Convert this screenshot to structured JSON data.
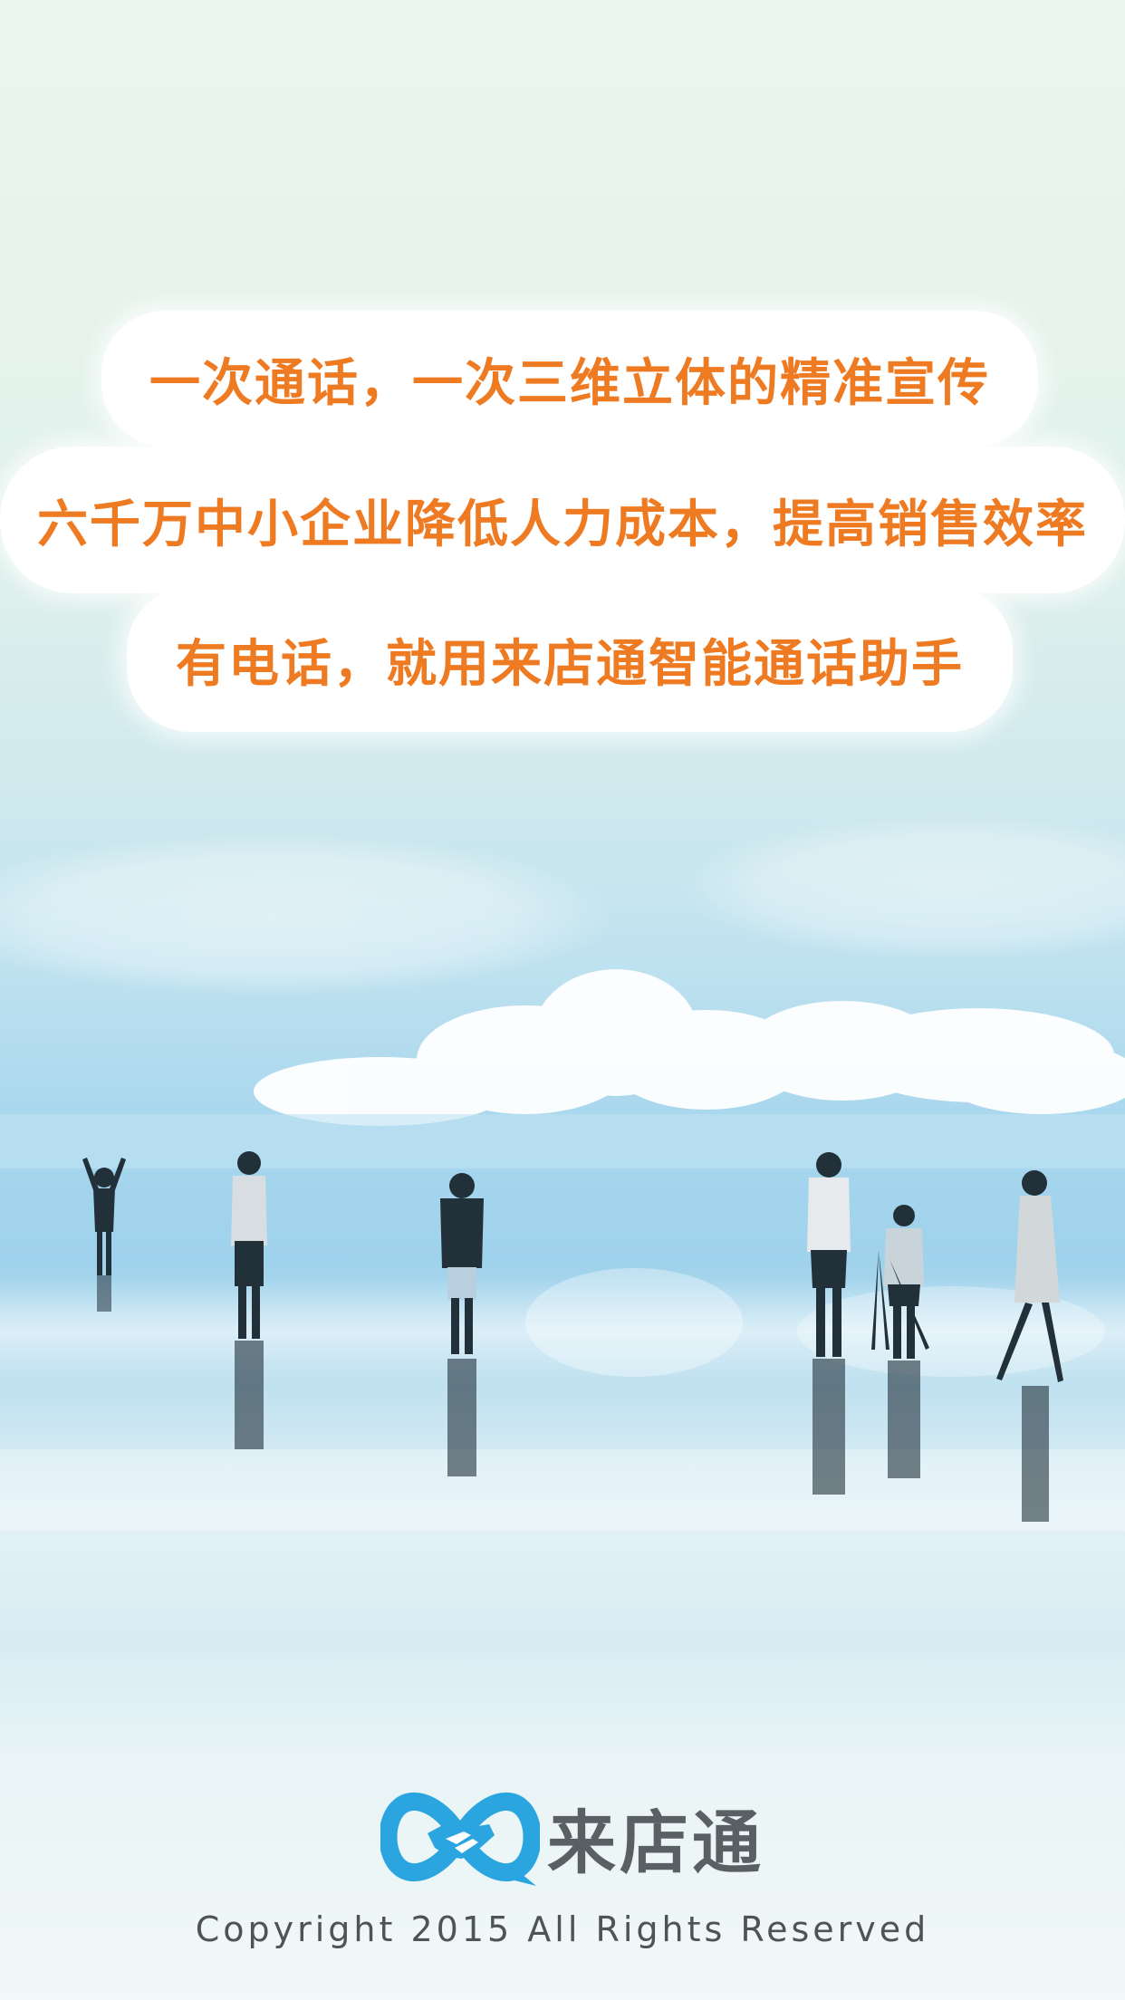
{
  "banner": {
    "line1": "一次通话，一次三维立体的精准宣传",
    "line2": "六千万中小企业降低人力成本，提高销售效率",
    "line3": "有电话，就用来店通智能通话助手"
  },
  "brand": {
    "name": "来店通",
    "logo_icon": "handshake-in-infinity-loop-icon",
    "logo_color": "#2aa5e0",
    "text_color": "#5a5f63"
  },
  "footer": {
    "copyright": "Copyright 2015 All Rights Reserved"
  },
  "accent_color": "#ee7a22"
}
